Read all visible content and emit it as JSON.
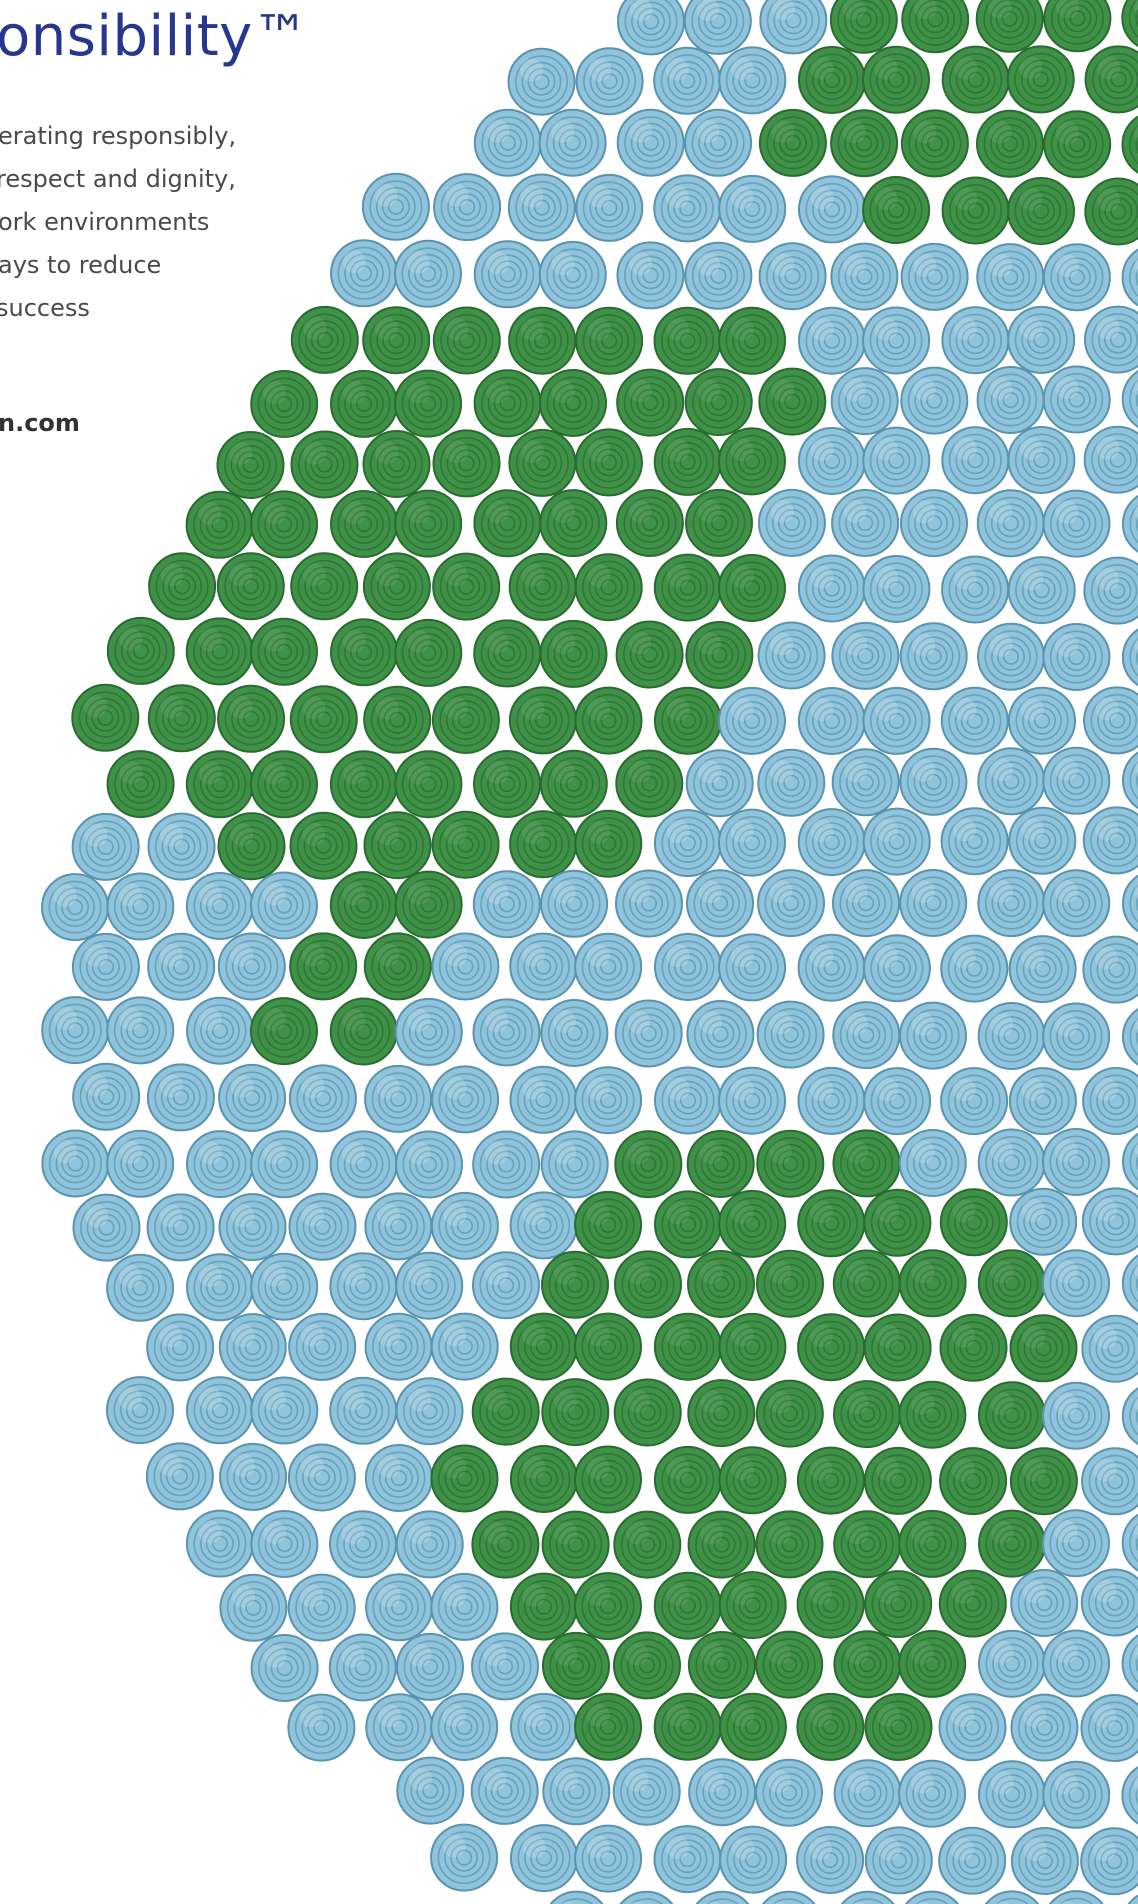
{
  "header": {
    "title": "onsibility™"
  },
  "body": {
    "lines": [
      "erating responsibly,",
      "respect and dignity,",
      "ork environments",
      "ays to reduce",
      "success"
    ]
  },
  "footer": {
    "url": "n.com"
  }
}
